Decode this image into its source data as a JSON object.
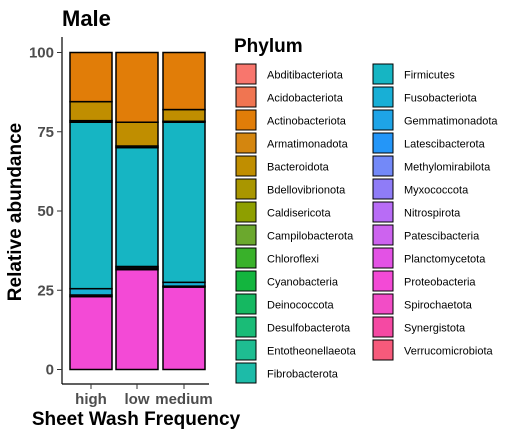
{
  "chart_data": {
    "type": "bar",
    "stacked": true,
    "title": "Male",
    "xlabel": "Sheet Wash Frequency",
    "ylabel": "Relative abundance",
    "ylim": [
      0,
      100
    ],
    "yticks": [
      0,
      25,
      50,
      75,
      100
    ],
    "categories": [
      "high",
      "low",
      "medium"
    ],
    "legend": {
      "title": "Phylum",
      "position": "right",
      "columns": 2,
      "entries": [
        {
          "name": "Abditibacteriota",
          "color": "#F8766D"
        },
        {
          "name": "Acidobacteriota",
          "color": "#F07551"
        },
        {
          "name": "Actinobacteriota",
          "color": "#E17D08"
        },
        {
          "name": "Armatimonadota",
          "color": "#D4860F"
        },
        {
          "name": "Bacteroidota",
          "color": "#C08E00"
        },
        {
          "name": "Bdellovibrionota",
          "color": "#A99600"
        },
        {
          "name": "Caldisericota",
          "color": "#8E9F00"
        },
        {
          "name": "Campilobacterota",
          "color": "#6BA82D"
        },
        {
          "name": "Chloroflexi",
          "color": "#39B12A"
        },
        {
          "name": "Cyanobacteria",
          "color": "#13B53E"
        },
        {
          "name": "Deinococcota",
          "color": "#15B861"
        },
        {
          "name": "Desulfobacterota",
          "color": "#1ABC77"
        },
        {
          "name": "Entotheonellaeota",
          "color": "#1EBD91"
        },
        {
          "name": "Fibrobacterota",
          "color": "#1DBBA8"
        },
        {
          "name": "Firmicutes",
          "color": "#16B5C3"
        },
        {
          "name": "Fusobacteriota",
          "color": "#18AFD6"
        },
        {
          "name": "Gemmatimonadota",
          "color": "#1EA4E7"
        },
        {
          "name": "Latescibacterota",
          "color": "#2496F8"
        },
        {
          "name": "Methylomirabilota",
          "color": "#7389F8"
        },
        {
          "name": "Myxococcota",
          "color": "#8F7CF7"
        },
        {
          "name": "Nitrospirota",
          "color": "#B86CF6"
        },
        {
          "name": "Patescibacteria",
          "color": "#CD63EF"
        },
        {
          "name": "Planctomycetota",
          "color": "#E352E5"
        },
        {
          "name": "Proteobacteria",
          "color": "#F34AD6"
        },
        {
          "name": "Spirochaetota",
          "color": "#F24DC6"
        },
        {
          "name": "Synergistota",
          "color": "#F549A3"
        },
        {
          "name": "Verrucomicrobiota",
          "color": "#F75A7B"
        }
      ]
    },
    "series": [
      {
        "name": "Proteobacteria",
        "values": [
          23.0,
          31.5,
          26.0
        ]
      },
      {
        "name": "Planctomycetota",
        "values": [
          0.5,
          0.5,
          0.3
        ]
      },
      {
        "name": "Fusobacteriota",
        "values": [
          2.0,
          0.5,
          1.2
        ]
      },
      {
        "name": "Firmicutes",
        "values": [
          52.5,
          37.5,
          50.5
        ]
      },
      {
        "name": "Bdellovibrionota",
        "values": [
          0.5,
          0.5,
          0.3
        ]
      },
      {
        "name": "Bacteroidota",
        "values": [
          6.0,
          7.5,
          3.7
        ]
      },
      {
        "name": "Actinobacteriota",
        "values": [
          15.5,
          22.0,
          18.0
        ]
      }
    ]
  }
}
